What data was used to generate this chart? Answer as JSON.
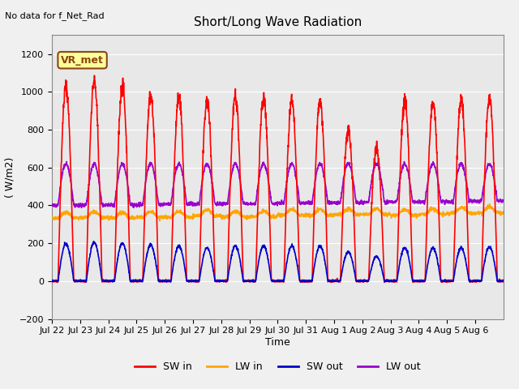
{
  "title": "Short/Long Wave Radiation",
  "xlabel": "Time",
  "ylabel": "( W/m2)",
  "top_left_text": "No data for f_Net_Rad",
  "legend_label": "VR_met",
  "ylim": [
    -200,
    1300
  ],
  "yticks": [
    -200,
    0,
    200,
    400,
    600,
    800,
    1000,
    1200
  ],
  "x_tick_labels": [
    "Jul 22",
    "Jul 23",
    "Jul 24",
    "Jul 25",
    "Jul 26",
    "Jul 27",
    "Jul 28",
    "Jul 29",
    "Jul 30",
    "Jul 31",
    "Aug 1",
    "Aug 2",
    "Aug 3",
    "Aug 4",
    "Aug 5",
    "Aug 6"
  ],
  "sw_in_color": "#FF0000",
  "lw_in_color": "#FFA500",
  "sw_out_color": "#0000CC",
  "lw_out_color": "#9900CC",
  "n_days": 16,
  "sw_in_peaks": [
    1030,
    1055,
    1035,
    980,
    970,
    950,
    980,
    970,
    960,
    950,
    800,
    700,
    950,
    950,
    960,
    970
  ],
  "sw_out_peaks": [
    195,
    205,
    200,
    190,
    185,
    175,
    185,
    185,
    185,
    185,
    155,
    130,
    175,
    175,
    175,
    180
  ],
  "lw_in_base": 330,
  "lw_in_variation": 60,
  "lw_out_base": 400,
  "lw_out_peak": 620
}
